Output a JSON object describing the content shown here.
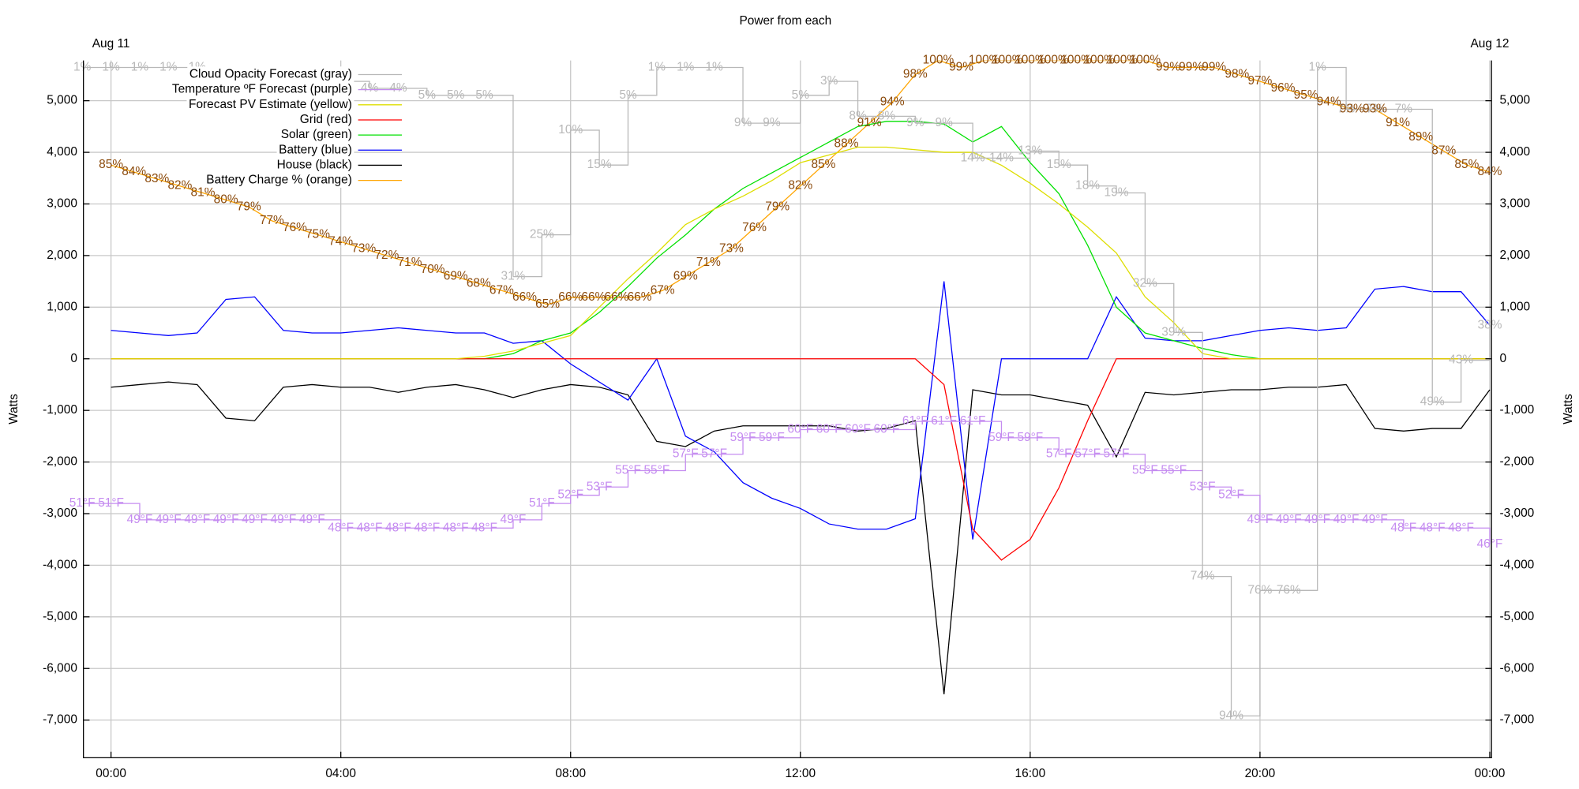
{
  "chart_data": {
    "type": "line",
    "title": "Power from each",
    "ylabel": "Watts",
    "xlim": [
      -0.48,
      24.03
    ],
    "ylim": [
      -7730,
      5780
    ],
    "xticks": [
      {
        "value": 0,
        "label": "00:00"
      },
      {
        "value": 4,
        "label": "04:00"
      },
      {
        "value": 8,
        "label": "08:00"
      },
      {
        "value": 12,
        "label": "12:00"
      },
      {
        "value": 16,
        "label": "16:00"
      },
      {
        "value": 20,
        "label": "20:00"
      },
      {
        "value": 24,
        "label": "00:00"
      }
    ],
    "x2ticks": [
      {
        "value": 0,
        "label": "Aug 11"
      },
      {
        "value": 24,
        "label": "Aug 12"
      }
    ],
    "yticks": [
      {
        "value": -7000,
        "label": "-7,000"
      },
      {
        "value": -6000,
        "label": "-6,000"
      },
      {
        "value": -5000,
        "label": "-5,000"
      },
      {
        "value": -4000,
        "label": "-4,000"
      },
      {
        "value": -3000,
        "label": "-3,000"
      },
      {
        "value": -2000,
        "label": "-2,000"
      },
      {
        "value": -1000,
        "label": "-1,000"
      },
      0,
      {
        "value": 1000,
        "label": "1,000"
      },
      {
        "value": 2000,
        "label": "2,000"
      },
      {
        "value": 3000,
        "label": "3,000"
      },
      {
        "value": 4000,
        "label": "4,000"
      },
      {
        "value": 5000,
        "label": "5,000"
      }
    ],
    "grid": true,
    "legend": "top-left",
    "series": [
      {
        "name": "Cloud Opacity Forecast (gray)",
        "style": "step-labels",
        "color": "#b8b8b8",
        "ylim": [
          100,
          0
        ],
        "x": [
          -0.5,
          0,
          0.5,
          1,
          1.5,
          2,
          2.5,
          3,
          3.5,
          4,
          4.5,
          5,
          5.5,
          6,
          6.5,
          7,
          7.5,
          8,
          8.5,
          9,
          9.5,
          10,
          10.5,
          11,
          11.5,
          12,
          12.5,
          13,
          13.5,
          14,
          14.5,
          15,
          15.5,
          16,
          16.5,
          17,
          17.5,
          18,
          18.5,
          19,
          19.5,
          20,
          20.5,
          21,
          21.5,
          22,
          22.5,
          23,
          23.5,
          24
        ],
        "values": [
          1,
          1,
          1,
          1,
          1,
          3,
          3,
          3,
          3,
          3,
          4,
          4,
          5,
          5,
          5,
          31,
          25,
          10,
          15,
          5,
          1,
          1,
          1,
          9,
          9,
          5,
          3,
          8,
          8,
          9,
          9,
          14,
          14,
          13,
          15,
          18,
          19,
          32,
          39,
          74,
          94,
          76,
          76,
          1,
          7,
          7,
          7,
          49,
          43,
          38
        ],
        "value_labels": [
          "1%",
          "1%",
          "1%",
          "1%",
          "1%",
          "3%",
          "3%",
          "3%",
          "3%",
          "3%",
          "4%",
          "4%",
          "5%",
          "5%",
          "5%",
          "31%",
          "25%",
          "10%",
          "15%",
          "5%",
          "1%",
          "1%",
          "1%",
          "9%",
          "9%",
          "5%",
          "3%",
          "8%",
          "8%",
          "9%",
          "9%",
          "14%",
          "14%",
          "13%",
          "15%",
          "18%",
          "19%",
          "32%",
          "39%",
          "74%",
          "94%",
          "76%",
          "76%",
          "1%",
          "7%",
          "7%",
          "7%",
          "49%",
          "43%",
          "38%"
        ]
      },
      {
        "name": "Temperature ºF Forecast (purple)",
        "style": "step-labels",
        "color": "#c58cf0",
        "ylim": [
          20,
          105
        ],
        "x": [
          -0.5,
          0,
          0.5,
          1,
          1.5,
          2,
          2.5,
          3,
          3.5,
          4,
          4.5,
          5,
          5.5,
          6,
          6.5,
          7,
          7.5,
          8,
          8.5,
          9,
          9.5,
          10,
          10.5,
          11,
          11.5,
          12,
          12.5,
          13,
          13.5,
          14,
          14.5,
          15,
          15.5,
          16,
          16.5,
          17,
          17.5,
          18,
          18.5,
          19,
          19.5,
          20,
          20.5,
          21,
          21.5,
          22,
          22.5,
          23,
          23.5,
          24
        ],
        "values": [
          51,
          51,
          49,
          49,
          49,
          49,
          49,
          49,
          49,
          48,
          48,
          48,
          48,
          48,
          48,
          49,
          51,
          52,
          53,
          55,
          55,
          57,
          57,
          59,
          59,
          60,
          60,
          60,
          60,
          61,
          61,
          61,
          59,
          59,
          57,
          57,
          57,
          55,
          55,
          53,
          52,
          49,
          49,
          49,
          49,
          49,
          48,
          48,
          48,
          46
        ],
        "value_labels": [
          "51°F",
          "51°F",
          "49°F",
          "49°F",
          "49°F",
          "49°F",
          "49°F",
          "49°F",
          "49°F",
          "48°F",
          "48°F",
          "48°F",
          "48°F",
          "48°F",
          "48°F",
          "49°F",
          "51°F",
          "52°F",
          "53°F",
          "55°F",
          "55°F",
          "57°F",
          "57°F",
          "59°F",
          "59°F",
          "60°F",
          "60°F",
          "60°F",
          "60°F",
          "61°F",
          "61°F",
          "61°F",
          "59°F",
          "59°F",
          "57°F",
          "57°F",
          "57°F",
          "55°F",
          "55°F",
          "53°F",
          "52°F",
          "49°F",
          "49°F",
          "49°F",
          "49°F",
          "49°F",
          "48°F",
          "48°F",
          "48°F",
          "46°F"
        ]
      },
      {
        "name": "Forecast PV Estimate (yellow)",
        "style": "line",
        "color": "#dede00",
        "x": [
          0,
          0.5,
          1,
          1.5,
          2,
          2.5,
          3,
          3.5,
          4,
          4.5,
          5,
          5.5,
          6,
          6.5,
          7,
          7.5,
          8,
          8.5,
          9,
          9.5,
          10,
          10.5,
          11,
          11.5,
          12,
          12.5,
          13,
          13.5,
          14,
          14.5,
          15,
          15.5,
          16,
          16.5,
          17,
          17.5,
          18,
          18.5,
          19,
          19.5,
          20,
          20.5,
          21,
          21.5,
          22,
          22.5,
          23,
          23.5,
          24
        ],
        "values": [
          0,
          0,
          0,
          0,
          0,
          0,
          0,
          0,
          0,
          0,
          0,
          0,
          0,
          50,
          150,
          300,
          450,
          1000,
          1550,
          2050,
          2600,
          2900,
          3150,
          3450,
          3800,
          3950,
          4100,
          4100,
          4050,
          4000,
          4000,
          3750,
          3400,
          3000,
          2550,
          2050,
          1200,
          700,
          100,
          0,
          0,
          0,
          0,
          0,
          0,
          0,
          0,
          0,
          0
        ]
      },
      {
        "name": "Grid (red)",
        "style": "line",
        "color": "#ff0000",
        "x": [
          0,
          0.5,
          1,
          1.5,
          2,
          2.5,
          3,
          3.5,
          4,
          4.5,
          5,
          5.5,
          6,
          6.5,
          7,
          7.5,
          8,
          8.5,
          9,
          9.5,
          10,
          10.5,
          11,
          11.5,
          12,
          12.5,
          13,
          13.5,
          14,
          14.5,
          15,
          15.5,
          16,
          16.5,
          17,
          17.5,
          18,
          18.5,
          19,
          19.5,
          20,
          20.5,
          21,
          21.5,
          22,
          22.5,
          23,
          23.5,
          24
        ],
        "values": [
          0,
          0,
          0,
          0,
          0,
          0,
          0,
          0,
          0,
          0,
          0,
          0,
          0,
          0,
          0,
          0,
          0,
          0,
          0,
          0,
          0,
          0,
          0,
          0,
          0,
          0,
          0,
          0,
          0,
          -500,
          -3300,
          -3900,
          -3500,
          -2500,
          -1200,
          0,
          0,
          0,
          0,
          0,
          0,
          0,
          0,
          0,
          0,
          0,
          0,
          0,
          0
        ]
      },
      {
        "name": "Solar (green)",
        "style": "line",
        "color": "#00e000",
        "x": [
          0,
          0.5,
          1,
          1.5,
          2,
          2.5,
          3,
          3.5,
          4,
          4.5,
          5,
          5.5,
          6,
          6.5,
          7,
          7.5,
          8,
          8.5,
          9,
          9.5,
          10,
          10.5,
          11,
          11.5,
          12,
          12.5,
          13,
          13.5,
          14,
          14.5,
          15,
          15.5,
          16,
          16.5,
          17,
          17.5,
          18,
          18.5,
          19,
          19.5,
          20,
          20.5,
          21,
          21.5,
          22,
          22.5,
          23,
          23.5,
          24
        ],
        "values": [
          0,
          0,
          0,
          0,
          0,
          0,
          0,
          0,
          0,
          0,
          0,
          0,
          0,
          0,
          100,
          350,
          500,
          900,
          1400,
          1950,
          2400,
          2900,
          3300,
          3600,
          3900,
          4200,
          4500,
          4600,
          4600,
          4550,
          4200,
          4500,
          3800,
          3200,
          2200,
          1000,
          500,
          350,
          200,
          80,
          0,
          0,
          0,
          0,
          0,
          0,
          0,
          0,
          0
        ]
      },
      {
        "name": "Battery (blue)",
        "style": "line",
        "color": "#0000ff",
        "x": [
          0,
          0.5,
          1,
          1.5,
          2,
          2.5,
          3,
          3.5,
          4,
          4.5,
          5,
          5.5,
          6,
          6.5,
          7,
          7.5,
          8,
          8.5,
          9,
          9.5,
          10,
          10.5,
          11,
          11.5,
          12,
          12.5,
          13,
          13.5,
          14,
          14.5,
          15,
          15.5,
          16,
          16.5,
          17,
          17.5,
          18,
          18.5,
          19,
          19.5,
          20,
          20.5,
          21,
          21.5,
          22,
          22.5,
          23,
          23.5,
          24
        ],
        "values": [
          550,
          500,
          450,
          500,
          1150,
          1200,
          550,
          500,
          500,
          550,
          600,
          550,
          500,
          500,
          300,
          350,
          -100,
          -450,
          -800,
          0,
          -1500,
          -1800,
          -2400,
          -2700,
          -2900,
          -3200,
          -3300,
          -3300,
          -3100,
          1500,
          -3500,
          0,
          0,
          0,
          0,
          1200,
          400,
          350,
          350,
          450,
          550,
          600,
          550,
          600,
          1350,
          1400,
          1300,
          1300,
          650
        ]
      },
      {
        "name": "House (black)",
        "style": "line",
        "color": "#000000",
        "x": [
          0,
          0.5,
          1,
          1.5,
          2,
          2.5,
          3,
          3.5,
          4,
          4.5,
          5,
          5.5,
          6,
          6.5,
          7,
          7.5,
          8,
          8.5,
          9,
          9.5,
          10,
          10.5,
          11,
          11.5,
          12,
          12.5,
          13,
          13.5,
          14,
          14.5,
          15,
          15.5,
          16,
          16.5,
          17,
          17.5,
          18,
          18.5,
          19,
          19.5,
          20,
          20.5,
          21,
          21.5,
          22,
          22.5,
          23,
          23.5,
          24
        ],
        "values": [
          -550,
          -500,
          -450,
          -500,
          -1150,
          -1200,
          -550,
          -500,
          -550,
          -550,
          -650,
          -550,
          -500,
          -600,
          -750,
          -600,
          -500,
          -550,
          -700,
          -1600,
          -1700,
          -1400,
          -1300,
          -1300,
          -1300,
          -1300,
          -1400,
          -1350,
          -1200,
          -6500,
          -600,
          -700,
          -700,
          -800,
          -900,
          -1900,
          -650,
          -700,
          -650,
          -600,
          -600,
          -550,
          -550,
          -500,
          -1350,
          -1400,
          -1350,
          -1350,
          -600
        ]
      },
      {
        "name": "Battery Charge % (orange)",
        "style": "line-labels",
        "color": "#ffa500",
        "label_color": "#8b4a0b",
        "ylim": [
          0,
          100
        ],
        "x": [
          0,
          0.4,
          0.8,
          1.2,
          1.6,
          2,
          2.4,
          2.8,
          3.2,
          3.6,
          4,
          4.4,
          4.8,
          5.2,
          5.6,
          6,
          6.4,
          6.8,
          7.2,
          7.6,
          8,
          8.4,
          8.8,
          9.2,
          9.6,
          10,
          10.4,
          10.8,
          11.2,
          11.6,
          12,
          12.4,
          12.8,
          13.2,
          13.6,
          14,
          14.4,
          14.8,
          15.2,
          15.6,
          16,
          16.4,
          16.8,
          17.2,
          17.6,
          18,
          18.4,
          18.8,
          19.2,
          19.6,
          20,
          20.4,
          20.8,
          21.2,
          21.6,
          22,
          22.4,
          22.8,
          23.2,
          23.6,
          24
        ],
        "values": [
          85,
          84,
          83,
          82,
          81,
          80,
          79,
          77,
          76,
          75,
          74,
          73,
          72,
          71,
          70,
          69,
          68,
          67,
          66,
          65,
          66,
          66,
          66,
          66,
          67,
          69,
          71,
          73,
          76,
          79,
          82,
          85,
          88,
          91,
          94,
          98,
          100,
          99,
          100,
          100,
          100,
          100,
          100,
          100,
          100,
          100,
          99,
          99,
          99,
          98,
          97,
          96,
          95,
          94,
          93,
          93,
          91,
          89,
          87,
          85,
          84
        ],
        "value_labels": [
          "85%",
          "84%",
          "83%",
          "82%",
          "81%",
          "80%",
          "79%",
          "77%",
          "76%",
          "75%",
          "74%",
          "73%",
          "72%",
          "71%",
          "70%",
          "69%",
          "68%",
          "67%",
          "66%",
          "65%",
          "66%",
          "66%",
          "66%",
          "66%",
          "67%",
          "69%",
          "71%",
          "73%",
          "76%",
          "79%",
          "82%",
          "85%",
          "88%",
          "91%",
          "94%",
          "98%",
          "100%",
          "99%",
          "100%",
          "100%",
          "100%",
          "100%",
          "100%",
          "100%",
          "100%",
          "100%",
          "99%",
          "99%",
          "99%",
          "98%",
          "97%",
          "96%",
          "95%",
          "94%",
          "93%",
          "93%",
          "91%",
          "89%",
          "87%",
          "85%",
          "84%"
        ]
      }
    ]
  }
}
